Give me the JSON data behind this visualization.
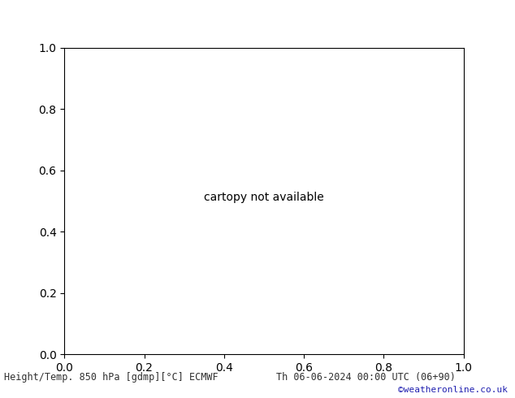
{
  "title_left": "Height/Temp. 850 hPa [gdmp][°C] ECMWF",
  "title_right": "Th 06-06-2024 00:00 UTC (06+90)",
  "credit": "©weatheronline.co.uk",
  "bg_ocean": "#c8c8c8",
  "bg_land": "#d8d8d8",
  "australia_fill": "#c8f0a0",
  "nz_fill": "#c8f0a0",
  "border_color": "#909090",
  "title_color": "#303030",
  "credit_color": "#2020b0",
  "orange_color": "#e08020",
  "red_color": "#cc0000",
  "green_color": "#80c840",
  "cyan_color": "#30b0a0",
  "black_contour": "#000000",
  "figsize": [
    6.34,
    4.9
  ],
  "dpi": 100,
  "map_extent": [
    90,
    200,
    -60,
    20
  ],
  "bottom_bar_height": 38
}
